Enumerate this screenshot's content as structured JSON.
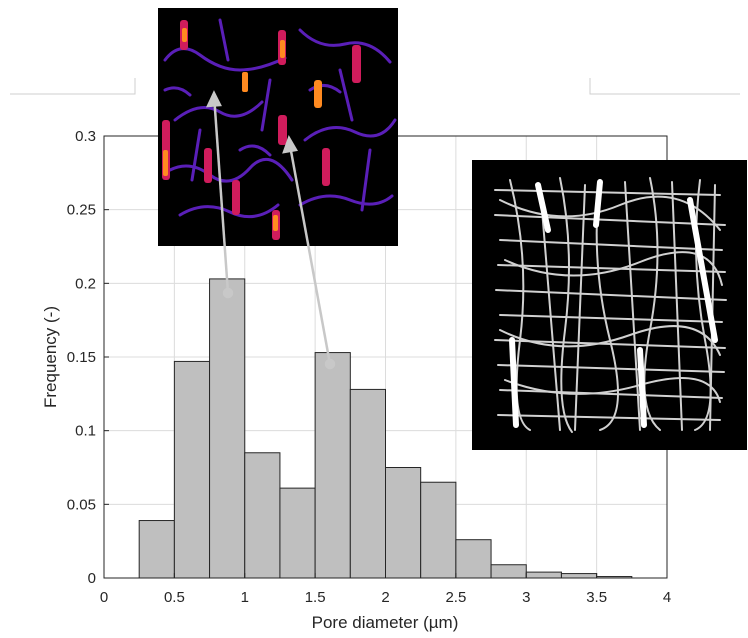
{
  "chart_data": {
    "type": "bar",
    "title": "",
    "xlabel": "Pore diameter (µm)",
    "ylabel": "Frequency (-)",
    "xlim": [
      0,
      4
    ],
    "ylim": [
      0,
      0.3
    ],
    "x_ticks": [
      "0",
      "0.5",
      "1",
      "1.5",
      "2",
      "2.5",
      "3",
      "3.5",
      "4"
    ],
    "y_ticks": [
      "0",
      "0.05",
      "0.1",
      "0.15",
      "0.2",
      "0.25",
      "0.3"
    ],
    "grid": true,
    "bin_width": 0.25,
    "bins": [
      {
        "x0": 0.25,
        "x1": 0.5,
        "value": 0.039
      },
      {
        "x0": 0.5,
        "x1": 0.75,
        "value": 0.147
      },
      {
        "x0": 0.75,
        "x1": 1.0,
        "value": 0.203
      },
      {
        "x0": 1.0,
        "x1": 1.25,
        "value": 0.085
      },
      {
        "x0": 1.25,
        "x1": 1.5,
        "value": 0.061
      },
      {
        "x0": 1.5,
        "x1": 1.75,
        "value": 0.153
      },
      {
        "x0": 1.75,
        "x1": 2.0,
        "value": 0.128
      },
      {
        "x0": 2.0,
        "x1": 2.25,
        "value": 0.075
      },
      {
        "x0": 2.25,
        "x1": 2.5,
        "value": 0.065
      },
      {
        "x0": 2.5,
        "x1": 2.75,
        "value": 0.026
      },
      {
        "x0": 2.75,
        "x1": 3.0,
        "value": 0.009
      },
      {
        "x0": 3.0,
        "x1": 3.25,
        "value": 0.004
      },
      {
        "x0": 3.25,
        "x1": 3.5,
        "value": 0.003
      },
      {
        "x0": 3.5,
        "x1": 3.75,
        "value": 0.001
      }
    ],
    "bar_color": "#bfbfbf",
    "bar_edge_color": "#262626",
    "annotations": [
      {
        "type": "arrow",
        "from": {
          "x": 0.88,
          "y": 0.193
        },
        "to": "pore-map-inset"
      },
      {
        "type": "arrow",
        "from": {
          "x": 1.63,
          "y": 0.143
        },
        "to": "pore-map-inset"
      }
    ],
    "insets": [
      {
        "name": "pore-map-inset",
        "kind": "image",
        "description_colors": [
          "#000000",
          "#5a1fb8",
          "#d01c5c",
          "#ff8a20"
        ]
      },
      {
        "name": "3d-network-inset",
        "kind": "image",
        "description_colors": [
          "#000000",
          "#e8e8e8"
        ]
      }
    ]
  }
}
